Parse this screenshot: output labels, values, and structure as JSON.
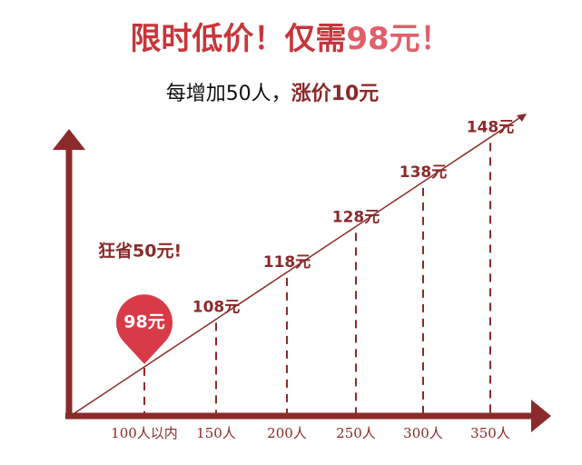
{
  "chart_data": {
    "type": "line",
    "title_parts": [
      "限时低价！仅需",
      "98元！"
    ],
    "subtitle_parts": [
      "每增加50人，",
      "涨价10元"
    ],
    "annotation": "狂省50元!",
    "categories": [
      "100人以内",
      "150人",
      "200人",
      "250人",
      "300人",
      "350人"
    ],
    "values": [
      98,
      108,
      118,
      128,
      138,
      148
    ],
    "value_labels": [
      "98元",
      "108元",
      "118元",
      "128元",
      "138元",
      "148元"
    ],
    "color": "#8b2a2a",
    "highlight_color": "#d83a48"
  }
}
